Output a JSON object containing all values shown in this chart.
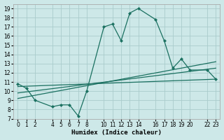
{
  "xlabel": "Humidex (Indice chaleur)",
  "bg_color": "#cde8e8",
  "grid_color": "#aacccc",
  "line_color": "#1a7060",
  "xlim": [
    -0.5,
    23.5
  ],
  "ylim": [
    7,
    19.5
  ],
  "xticks": [
    0,
    1,
    2,
    4,
    5,
    6,
    7,
    8,
    10,
    11,
    12,
    13,
    14,
    16,
    17,
    18,
    19,
    20,
    22,
    23
  ],
  "yticks": [
    7,
    8,
    9,
    10,
    11,
    12,
    13,
    14,
    15,
    16,
    17,
    18,
    19
  ],
  "main_series": {
    "x": [
      0,
      1,
      2,
      4,
      5,
      6,
      7,
      8,
      10,
      11,
      12,
      13,
      14,
      16,
      17,
      18,
      19,
      20,
      22,
      23
    ],
    "y": [
      10.8,
      10.3,
      9.0,
      8.3,
      8.5,
      8.5,
      7.3,
      10.0,
      17.0,
      17.3,
      15.5,
      18.5,
      19.0,
      17.8,
      15.5,
      12.5,
      13.5,
      12.3,
      12.3,
      11.3
    ]
  },
  "trend_lines": [
    {
      "x": [
        0,
        23
      ],
      "y": [
        10.5,
        11.3
      ]
    },
    {
      "x": [
        0,
        23
      ],
      "y": [
        9.8,
        12.5
      ]
    },
    {
      "x": [
        0,
        23
      ],
      "y": [
        9.2,
        13.2
      ]
    }
  ]
}
